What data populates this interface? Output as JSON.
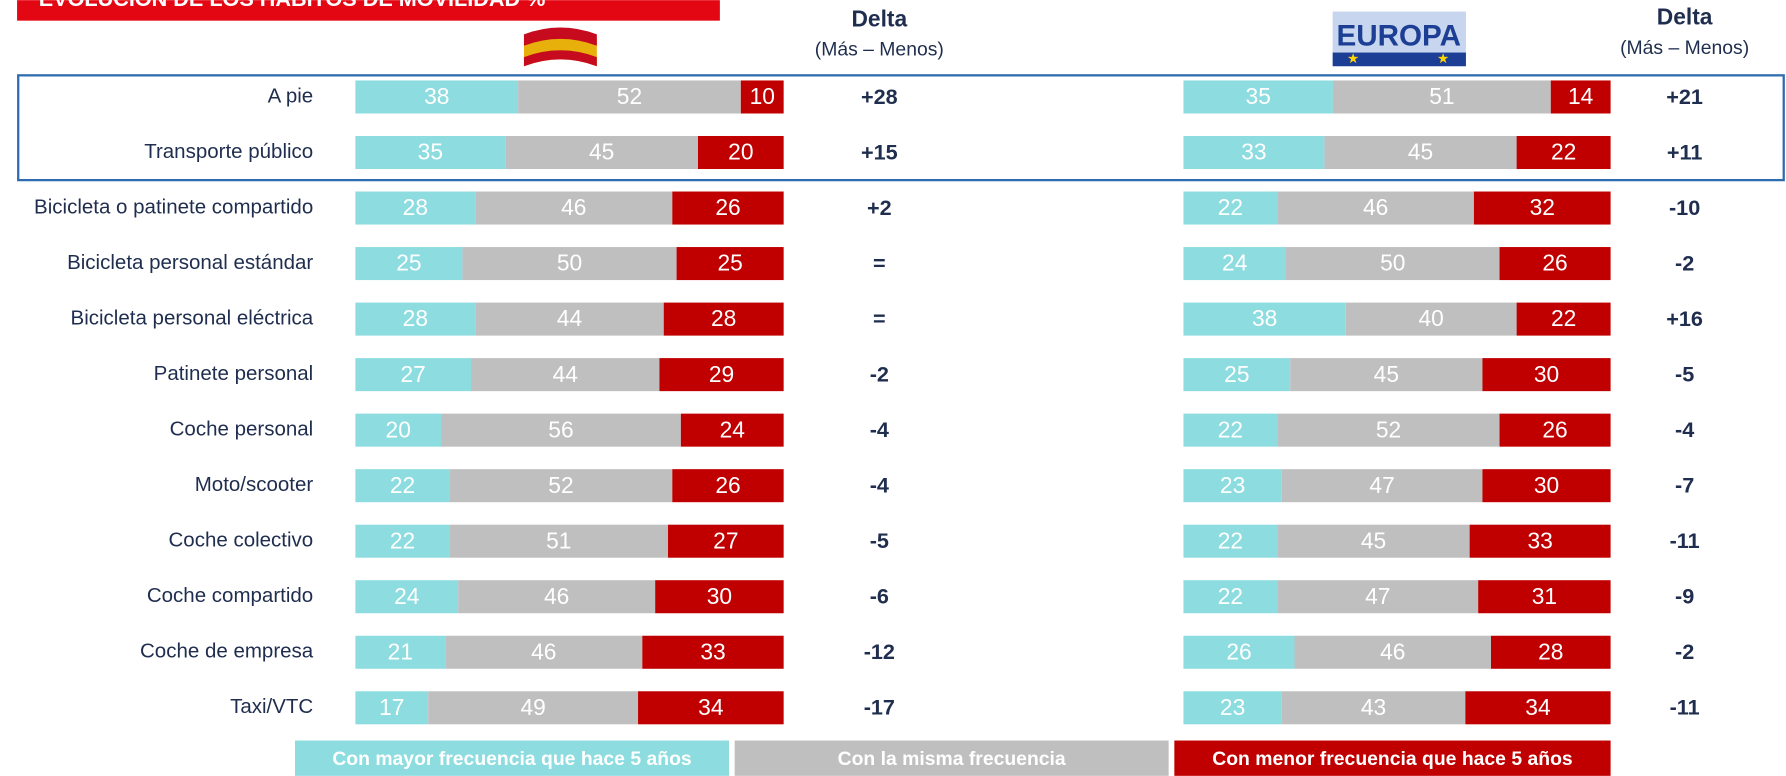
{
  "chart_data": [
    {
      "type": "bar",
      "orientation": "horizontal",
      "stacked": true,
      "title": "EVOLUCIÓN DE LOS HÁBITOS DE MOVILIDAD %",
      "xlim": [
        0,
        100
      ],
      "categories": [
        "A pie",
        "Transporte público",
        "Bicicleta o patinete compartido",
        "Bicicleta personal estándar",
        "Bicicleta personal eléctrica",
        "Patinete personal",
        "Coche personal",
        "Moto/scooter",
        "Coche colectivo",
        "Coche compartido",
        "Coche de empresa",
        "Taxi/VTC"
      ],
      "series": [
        {
          "name": "Con mayor frecuencia que hace 5 años",
          "color": "#8ddce0",
          "values": [
            38,
            35,
            28,
            25,
            28,
            27,
            20,
            22,
            22,
            24,
            21,
            17
          ]
        },
        {
          "name": "Con la misma frecuencia",
          "color": "#bfbfbf",
          "values": [
            52,
            45,
            46,
            50,
            44,
            44,
            56,
            52,
            51,
            46,
            46,
            49
          ]
        },
        {
          "name": "Con menor frecuencia que hace 5 años",
          "color": "#c00000",
          "values": [
            10,
            20,
            26,
            25,
            28,
            29,
            24,
            26,
            27,
            30,
            33,
            34
          ]
        }
      ],
      "delta": {
        "title": "Delta",
        "subtitle": "(Más – Menos)",
        "values": [
          28,
          15,
          2,
          0,
          0,
          -2,
          -4,
          -4,
          -5,
          -6,
          -12,
          -17
        ],
        "value_labels": [
          "+28",
          "+15",
          "+2",
          "=",
          "=",
          "-2",
          "-4",
          "-4",
          "-5",
          "-6",
          "-12",
          "-17"
        ]
      }
    },
    {
      "type": "bar",
      "orientation": "horizontal",
      "stacked": true,
      "logo_text": "EUROPA",
      "xlim": [
        0,
        100
      ],
      "series": [
        {
          "name": "Con mayor frecuencia que hace 5 años",
          "color": "#8ddce0",
          "values": [
            35,
            33,
            22,
            24,
            38,
            25,
            22,
            23,
            22,
            22,
            26,
            23
          ]
        },
        {
          "name": "Con la misma frecuencia",
          "color": "#bfbfbf",
          "values": [
            51,
            45,
            46,
            50,
            40,
            45,
            52,
            47,
            45,
            47,
            46,
            43
          ]
        },
        {
          "name": "Con menor frecuencia que hace 5 años",
          "color": "#c00000",
          "values": [
            14,
            22,
            32,
            26,
            22,
            30,
            26,
            30,
            33,
            31,
            28,
            34
          ]
        }
      ],
      "delta": {
        "title": "Delta",
        "subtitle": "(Más – Menos)",
        "values": [
          21,
          11,
          -10,
          -2,
          16,
          -5,
          -4,
          -7,
          -11,
          -9,
          -2,
          -11
        ],
        "value_labels": [
          "+21",
          "+11",
          "-10",
          "-2",
          "+16",
          "-5",
          "-4",
          "-7",
          "-11",
          "-9",
          "-2",
          "-11"
        ]
      }
    }
  ]
}
